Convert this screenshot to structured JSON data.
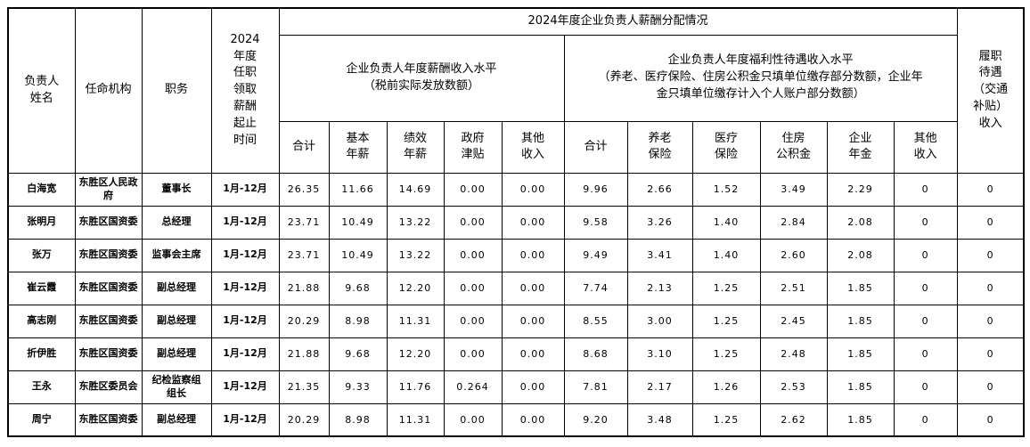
{
  "table": {
    "header": {
      "name": "负责人\n姓名",
      "agency": "任命机构",
      "position": "职务",
      "period": "2024\n年度\n任职\n领取\n薪酬\n起止\n时间",
      "group_title": "2024年度企业负责人薪酬分配情况",
      "salary_group": "企业负责人年度薪酬收入水平\n（税前实际发放数额）",
      "welfare_group": "企业负责人年度福利性待遇收入水平\n（养老、医疗保险、住房公积金只填单位缴存部分数额，企业年\n金只填单位缴存计入个人账户部分数额）",
      "salary_cols": [
        "合计",
        "基本\n年薪",
        "绩效\n年薪",
        "政府\n津贴",
        "其他\n收入"
      ],
      "welfare_cols": [
        "合计",
        "养老\n保险",
        "医疗\n保险",
        "住房\n公积金",
        "企业\n年金",
        "其他\n收入"
      ],
      "duty": "履职\n待遇\n（交通\n补贴）\n收入"
    },
    "rows": [
      {
        "name": "白海宽",
        "agency": "东胜区人民政府",
        "position": "董事长",
        "period": "1月-12月",
        "values": [
          "26.35",
          "11.66",
          "14.69",
          "0.00",
          "0.00",
          "9.96",
          "2.66",
          "1.52",
          "3.49",
          "2.29",
          "0",
          "0"
        ],
        "duty": "0"
      },
      {
        "name": "张明月",
        "agency": "东胜区国资委",
        "position": "总经理",
        "period": "1月-12月",
        "values": [
          "23.71",
          "10.49",
          "13.22",
          "0.00",
          "0.00",
          "9.58",
          "3.26",
          "1.40",
          "2.84",
          "2.08",
          "0",
          "0"
        ],
        "duty": "0"
      },
      {
        "name": "张万",
        "agency": "东胜区国资委",
        "position": "监事会主席",
        "period": "1月-12月",
        "values": [
          "23.71",
          "10.49",
          "13.22",
          "0.00",
          "0.00",
          "9.49",
          "3.41",
          "1.40",
          "2.60",
          "2.08",
          "0",
          "0"
        ],
        "duty": "0"
      },
      {
        "name": "崔云霞",
        "agency": "东胜区国资委",
        "position": "副总经理",
        "period": "1月-12月",
        "values": [
          "21.88",
          "9.68",
          "12.20",
          "0.00",
          "0.00",
          "7.74",
          "2.13",
          "1.25",
          "2.51",
          "1.85",
          "0",
          "0"
        ],
        "duty": "0"
      },
      {
        "name": "高志刚",
        "agency": "东胜区国资委",
        "position": "副总经理",
        "period": "1月-12月",
        "values": [
          "20.29",
          "8.98",
          "11.31",
          "0.00",
          "0.00",
          "8.55",
          "3.00",
          "1.25",
          "2.45",
          "1.85",
          "0",
          "0"
        ],
        "duty": "0"
      },
      {
        "name": "折伊胜",
        "agency": "东胜区国资委",
        "position": "副总经理",
        "period": "1月-12月",
        "values": [
          "21.88",
          "9.68",
          "12.20",
          "0.00",
          "0.00",
          "8.68",
          "3.10",
          "1.25",
          "2.48",
          "1.85",
          "0",
          "0"
        ],
        "duty": "0"
      },
      {
        "name": "王永",
        "agency": "东胜区委员会",
        "position": "纪检监察组\n组长",
        "period": "1月-12月",
        "values": [
          "21.35",
          "9.33",
          "11.76",
          "0.264",
          "0.00",
          "7.81",
          "2.17",
          "1.26",
          "2.53",
          "1.85",
          "0",
          "0"
        ],
        "duty": "0"
      },
      {
        "name": "周宁",
        "agency": "东胜区国资委",
        "position": "副总经理",
        "period": "1月-12月",
        "values": [
          "20.29",
          "8.98",
          "11.31",
          "0.00",
          "0.00",
          "9.20",
          "3.48",
          "1.25",
          "2.62",
          "1.85",
          "0",
          "0"
        ],
        "duty": "0"
      }
    ]
  }
}
